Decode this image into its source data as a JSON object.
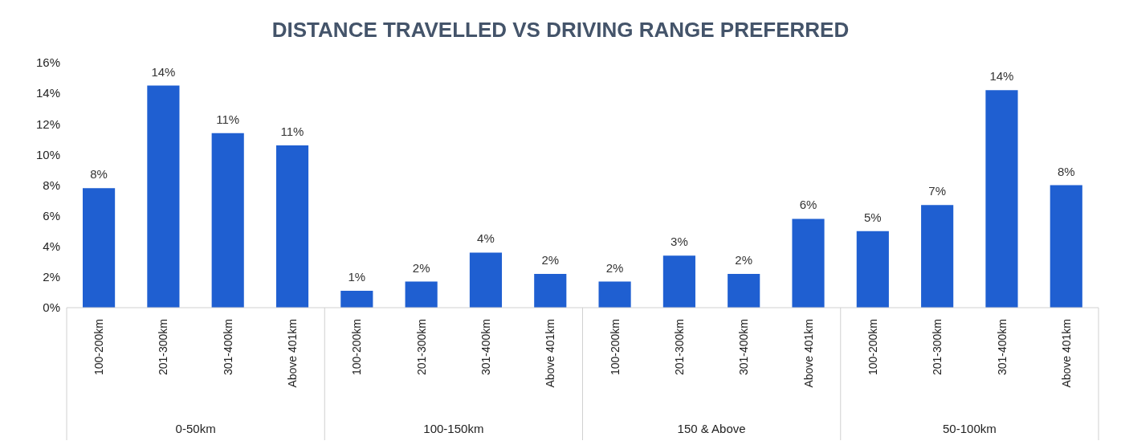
{
  "chart_data": {
    "type": "bar",
    "title": "DISTANCE TRAVELLED VS DRIVING RANGE PREFERRED",
    "categories": [
      "100-200km",
      "201-300km",
      "301-400km",
      "Above 401km",
      "100-200km",
      "201-300km",
      "301-400km",
      "Above 401km",
      "100-200km",
      "201-300km",
      "301-400km",
      "Above 401km",
      "100-200km",
      "201-300km",
      "301-400km",
      "Above 401km"
    ],
    "values": [
      7.8,
      14.5,
      11.4,
      10.6,
      1.1,
      1.7,
      3.6,
      2.2,
      1.7,
      3.4,
      2.2,
      5.8,
      5.0,
      6.7,
      14.2,
      8.0
    ],
    "value_labels": [
      "8%",
      "14%",
      "11%",
      "11%",
      "1%",
      "2%",
      "4%",
      "2%",
      "2%",
      "3%",
      "2%",
      "6%",
      "5%",
      "7%",
      "14%",
      "8%"
    ],
    "color": "#1f5fd1",
    "ylim": [
      0,
      16
    ],
    "yticks": [
      {
        "value": 0,
        "label": "0%"
      },
      {
        "value": 2,
        "label": "2%"
      },
      {
        "value": 4,
        "label": "4%"
      },
      {
        "value": 6,
        "label": "6%"
      },
      {
        "value": 8,
        "label": "8%"
      },
      {
        "value": 10,
        "label": "10%"
      },
      {
        "value": 12,
        "label": "12%"
      },
      {
        "value": 14,
        "label": "14%"
      },
      {
        "value": 16,
        "label": "16%"
      }
    ],
    "annotations": [
      "0-50km",
      "100-150km",
      "150 & Above",
      "50-100km"
    ]
  }
}
